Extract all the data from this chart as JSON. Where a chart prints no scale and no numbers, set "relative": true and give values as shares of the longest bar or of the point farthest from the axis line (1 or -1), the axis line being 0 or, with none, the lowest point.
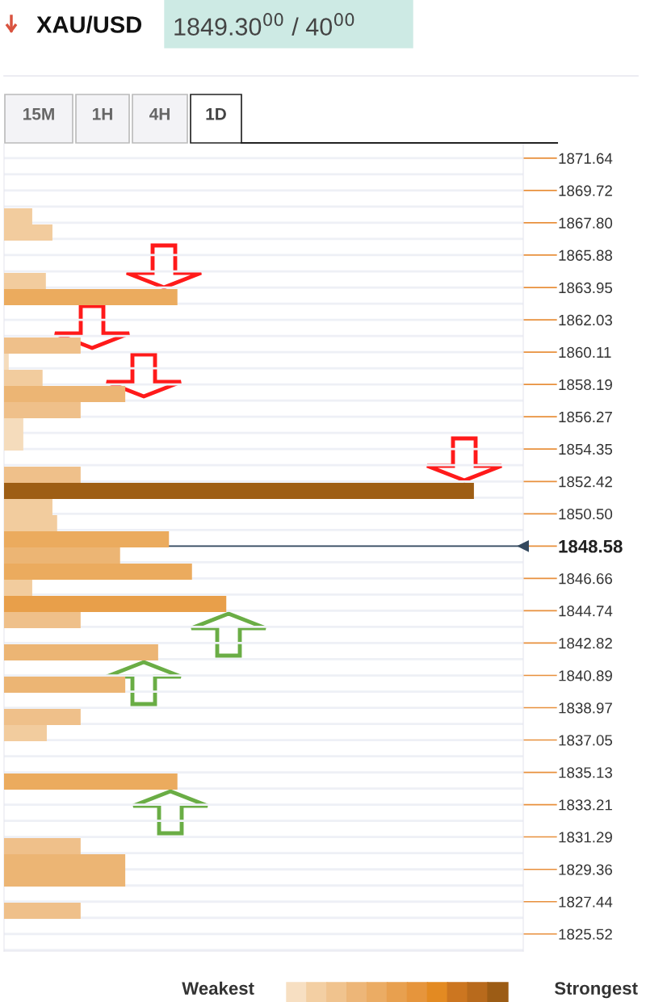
{
  "chart_data": {
    "type": "bar",
    "orientation": "horizontal",
    "relative": true,
    "title": "XAU/USD",
    "subtitle": "1849.30$^{00}$ / 40$^{00}$",
    "annotations": [
      "15M",
      "1H",
      "4H",
      "1D",
      "Weakest",
      "Strongest"
    ],
    "x": [
      1868.18,
      1867.22,
      1864.34,
      1863.38,
      1860.5,
      1859.54,
      1858.58,
      1857.62,
      1856.66,
      1855.7,
      1854.74,
      1852.82,
      1851.86,
      1850.9,
      1849.94,
      1848.98,
      1848.02,
      1847.06,
      1846.1,
      1845.14,
      1844.18,
      1842.26,
      1840.34,
      1838.42,
      1837.46,
      1834.58,
      1830.74,
      1829.78,
      1828.82,
      1826.9
    ],
    "values": [
      0.06,
      0.103,
      0.089,
      0.369,
      0.163,
      0.01,
      0.082,
      0.258,
      0.163,
      0.041,
      0.041,
      0.163,
      1.0,
      0.103,
      0.113,
      0.351,
      0.247,
      0.4,
      0.06,
      0.473,
      0.163,
      0.328,
      0.258,
      0.163,
      0.091,
      0.369,
      0.163,
      0.258,
      0.258,
      0.163
    ],
    "colors": [
      "#f2cc9e",
      "#f2cc9e",
      "#f2cc9e",
      "#ebab5e",
      "#efc08a",
      "#f5dcbc",
      "#f2cc9e",
      "#ecb574",
      "#efc08a",
      "#f5dcbc",
      "#f5dcbc",
      "#efc08a",
      "#9e5e14",
      "#f2cc9e",
      "#f2cc9e",
      "#ebab5e",
      "#ecb574",
      "#ebab5e",
      "#f2cc9e",
      "#e89f4a",
      "#efc08a",
      "#ecb574",
      "#ecb574",
      "#efc08a",
      "#f2cc9e",
      "#ebab5e",
      "#efc08a",
      "#ecb574",
      "#ecb574",
      "#efc08a"
    ],
    "ylim": [
      1824.5,
      1872.5
    ],
    "yticks": [
      1871.64,
      1869.72,
      {
        "value": 1867.8,
        "label": "1867.80"
      },
      1865.88,
      1863.95,
      1862.03,
      1860.11,
      1858.19,
      1856.27,
      1854.35,
      1852.42,
      {
        "value": 1850.5,
        "label": "1850.50"
      },
      1848.58,
      1846.66,
      1844.74,
      1842.82,
      1840.89,
      1838.97,
      1837.05,
      1835.13,
      1833.21,
      1831.29,
      1829.36,
      1827.44,
      1825.52
    ],
    "ref_lines": [
      {
        "axis": "y",
        "value": 1848.58,
        "color": "#34495e"
      }
    ],
    "grid": "y"
  }
}
